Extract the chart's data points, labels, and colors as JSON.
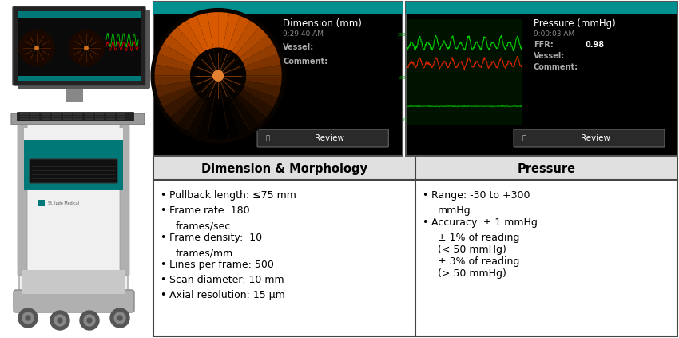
{
  "table_header_left": "Dimension & Morphology",
  "table_header_right": "Pressure",
  "header_bg_color": "#e0e0e0",
  "table_border_color": "#444444",
  "header_font_size": 10.5,
  "body_font_size": 9.0,
  "bg_color": "#ffffff",
  "oct_screen_bg": "#000000",
  "pressure_screen_bg": "#000000",
  "oct_title": "Dimension (mm)",
  "oct_time": "9:29:40 AM",
  "oct_vessel": "Vessel:",
  "oct_comment": "Comment:",
  "oct_review": "Review",
  "pressure_title": "Pressure (mmHg)",
  "pressure_time": "9:00:03 AM",
  "pressure_ffr": "FFR:",
  "pressure_ffr_val": "0.98",
  "pressure_vessel": "Vessel:",
  "pressure_comment": "Comment:",
  "pressure_review": "Review",
  "screen_text_color": "#ffffff",
  "screen_gray_color": "#999999",
  "teal_color": "#009090",
  "left_col_items": [
    [
      "Pullback length: ≤75 mm",
      false
    ],
    [
      "Frame rate: 180",
      false
    ],
    [
      "    frames/sec",
      true
    ],
    [
      "Frame density:  10",
      false
    ],
    [
      "    frames/mm",
      true
    ],
    [
      "Lines per frame: 500",
      false
    ],
    [
      "Scan diameter: 10 mm",
      false
    ],
    [
      "Axial resolution: 15 μm",
      false
    ]
  ],
  "right_col_items": [
    [
      "Range: -30 to +300",
      false
    ],
    [
      "    mmHg",
      true
    ],
    [
      "Accuracy: ± 1 mmHg",
      false
    ],
    [
      "    ± 1% of reading",
      true
    ],
    [
      "    (< 50 mmHg)",
      true
    ],
    [
      "    ± 3% of reading",
      true
    ],
    [
      "    (> 50 mmHg)",
      true
    ]
  ],
  "cart_white": "#f0f0f0",
  "cart_gray": "#b0b0b0",
  "cart_dark_gray": "#707070",
  "cart_teal": "#007878",
  "cart_screen_bg": "#111111"
}
